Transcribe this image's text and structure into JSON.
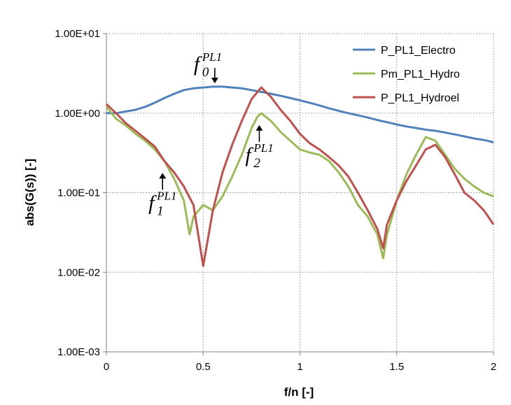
{
  "chart_data": {
    "type": "line",
    "title": "",
    "xlabel": "f/n [-]",
    "ylabel": "abs(G(s)) [-]",
    "xlim": [
      0,
      2
    ],
    "ylim": [
      0.001,
      10
    ],
    "yscale": "log",
    "x_ticks": [
      0,
      0.5,
      1,
      1.5,
      2
    ],
    "x_tick_labels": [
      "0",
      "0.5",
      "1",
      "1.5",
      "2"
    ],
    "y_ticks": [
      0.001,
      0.01,
      0.1,
      1,
      10
    ],
    "y_tick_labels": [
      "1.00E-03",
      "1.00E-02",
      "1.00E-01",
      "1.00E+00",
      "1.00E+01"
    ],
    "grid": true,
    "legend_position": "top-right",
    "series": [
      {
        "name": "P_PL1_Electro",
        "color": "#4F81BD",
        "x": [
          0,
          0.05,
          0.1,
          0.15,
          0.2,
          0.25,
          0.3,
          0.35,
          0.4,
          0.45,
          0.5,
          0.55,
          0.6,
          0.65,
          0.7,
          0.75,
          0.8,
          0.85,
          0.9,
          0.95,
          1.0,
          1.05,
          1.1,
          1.15,
          1.2,
          1.25,
          1.3,
          1.35,
          1.4,
          1.45,
          1.5,
          1.55,
          1.6,
          1.65,
          1.7,
          1.75,
          1.8,
          1.85,
          1.9,
          1.95,
          2.0
        ],
        "y": [
          1.0,
          1.0,
          1.05,
          1.1,
          1.2,
          1.35,
          1.55,
          1.75,
          1.95,
          2.05,
          2.1,
          2.15,
          2.15,
          2.1,
          2.05,
          1.95,
          1.85,
          1.75,
          1.65,
          1.55,
          1.45,
          1.35,
          1.25,
          1.15,
          1.07,
          1.0,
          0.94,
          0.88,
          0.82,
          0.77,
          0.72,
          0.68,
          0.65,
          0.62,
          0.6,
          0.57,
          0.54,
          0.51,
          0.48,
          0.46,
          0.43
        ]
      },
      {
        "name": "Pm_PL1_Hydro",
        "color": "#9BBB59",
        "x": [
          0,
          0.05,
          0.1,
          0.15,
          0.2,
          0.25,
          0.3,
          0.35,
          0.4,
          0.43,
          0.45,
          0.5,
          0.55,
          0.6,
          0.65,
          0.7,
          0.75,
          0.78,
          0.8,
          0.85,
          0.9,
          0.95,
          1.0,
          1.05,
          1.1,
          1.15,
          1.2,
          1.25,
          1.3,
          1.35,
          1.4,
          1.43,
          1.45,
          1.5,
          1.55,
          1.6,
          1.65,
          1.7,
          1.75,
          1.8,
          1.85,
          1.9,
          1.95,
          2.0
        ],
        "y": [
          1.2,
          0.85,
          0.7,
          0.55,
          0.45,
          0.35,
          0.25,
          0.15,
          0.08,
          0.03,
          0.05,
          0.07,
          0.06,
          0.09,
          0.16,
          0.3,
          0.65,
          0.9,
          1.0,
          0.8,
          0.58,
          0.45,
          0.35,
          0.32,
          0.3,
          0.25,
          0.18,
          0.12,
          0.07,
          0.05,
          0.03,
          0.015,
          0.03,
          0.08,
          0.17,
          0.3,
          0.5,
          0.45,
          0.3,
          0.2,
          0.15,
          0.12,
          0.1,
          0.09
        ]
      },
      {
        "name": "P_PL1_Hydroel",
        "color": "#C0504D",
        "x": [
          0,
          0.05,
          0.1,
          0.15,
          0.2,
          0.25,
          0.3,
          0.35,
          0.4,
          0.45,
          0.5,
          0.55,
          0.6,
          0.65,
          0.7,
          0.75,
          0.8,
          0.85,
          0.9,
          0.95,
          1.0,
          1.05,
          1.1,
          1.15,
          1.2,
          1.25,
          1.3,
          1.35,
          1.4,
          1.43,
          1.45,
          1.5,
          1.55,
          1.6,
          1.65,
          1.7,
          1.75,
          1.8,
          1.85,
          1.9,
          1.95,
          2.0
        ],
        "y": [
          1.3,
          1.0,
          0.75,
          0.6,
          0.48,
          0.38,
          0.25,
          0.18,
          0.12,
          0.07,
          0.012,
          0.06,
          0.18,
          0.4,
          0.8,
          1.5,
          2.1,
          1.6,
          1.1,
          0.8,
          0.55,
          0.42,
          0.35,
          0.28,
          0.22,
          0.16,
          0.1,
          0.06,
          0.035,
          0.02,
          0.04,
          0.08,
          0.14,
          0.22,
          0.35,
          0.4,
          0.28,
          0.17,
          0.1,
          0.08,
          0.06,
          0.04
        ]
      }
    ],
    "annotations": [
      {
        "symbol": "f",
        "sub": "0",
        "sup": "PL1",
        "arrow_x": 0.56,
        "arrow_y": 2.1,
        "direction": "down"
      },
      {
        "symbol": "f",
        "sub": "1",
        "sup": "PL1",
        "arrow_x": 0.29,
        "arrow_y": 0.2,
        "direction": "up"
      },
      {
        "symbol": "f",
        "sub": "2",
        "sup": "PL1",
        "arrow_x": 0.79,
        "arrow_y": 0.8,
        "direction": "up"
      }
    ]
  }
}
